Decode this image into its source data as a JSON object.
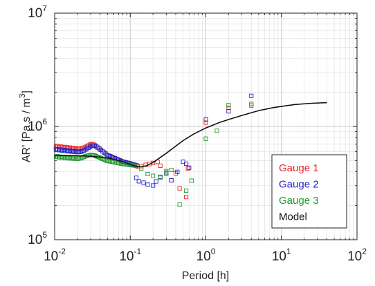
{
  "chart_data": {
    "type": "scatter",
    "xlabel": "Period [h]",
    "ylabel_main": "AR' [Pa s / m",
    "ylabel_sup": "3",
    "ylabel_end": "]",
    "x_scale": "log",
    "y_scale": "log",
    "xlim": [
      0.01,
      100
    ],
    "ylim": [
      100000,
      10000000
    ],
    "grid": true,
    "legend_position": "bottom-right",
    "x_ticks": [
      {
        "base": "10",
        "exp": "-2",
        "value": 0.01
      },
      {
        "base": "10",
        "exp": "-1",
        "value": 0.1
      },
      {
        "base": "10",
        "exp": "0",
        "value": 1
      },
      {
        "base": "10",
        "exp": "1",
        "value": 10
      },
      {
        "base": "10",
        "exp": "2",
        "value": 100
      }
    ],
    "y_ticks": [
      {
        "base": "10",
        "exp": "5",
        "value": 100000
      },
      {
        "base": "10",
        "exp": "6",
        "value": 1000000
      },
      {
        "base": "10",
        "exp": "7",
        "value": 10000000
      }
    ],
    "series": [
      {
        "name": "Gauge 1",
        "color": "#e8262a",
        "marker": "square",
        "points": [
          [
            0.0104,
            661000
          ],
          [
            0.0109,
            671000
          ],
          [
            0.0114,
            655000
          ],
          [
            0.012,
            664000
          ],
          [
            0.0126,
            651000
          ],
          [
            0.0132,
            659000
          ],
          [
            0.0138,
            646000
          ],
          [
            0.0145,
            655000
          ],
          [
            0.0152,
            642000
          ],
          [
            0.0159,
            650000
          ],
          [
            0.0167,
            638000
          ],
          [
            0.0175,
            645000
          ],
          [
            0.0183,
            635000
          ],
          [
            0.0192,
            642000
          ],
          [
            0.0201,
            632000
          ],
          [
            0.0211,
            639000
          ],
          [
            0.0221,
            634000
          ],
          [
            0.0232,
            642000
          ],
          [
            0.0243,
            648000
          ],
          [
            0.0255,
            658000
          ],
          [
            0.0267,
            667000
          ],
          [
            0.028,
            680000
          ],
          [
            0.0294,
            691000
          ],
          [
            0.0308,
            699000
          ],
          [
            0.0323,
            695000
          ],
          [
            0.0338,
            682000
          ],
          [
            0.0355,
            668000
          ],
          [
            0.0372,
            651000
          ],
          [
            0.039,
            636000
          ],
          [
            0.0408,
            621000
          ],
          [
            0.0428,
            605000
          ],
          [
            0.0449,
            590000
          ],
          [
            0.0471,
            575000
          ],
          [
            0.0493,
            561000
          ],
          [
            0.0517,
            552000
          ],
          [
            0.0543,
            545000
          ],
          [
            0.0569,
            538000
          ],
          [
            0.0596,
            531000
          ],
          [
            0.0625,
            524000
          ],
          [
            0.0656,
            517000
          ],
          [
            0.0688,
            510000
          ],
          [
            0.0721,
            503000
          ],
          [
            0.0756,
            496000
          ],
          [
            0.0792,
            489000
          ],
          [
            0.0831,
            485000
          ],
          [
            0.0871,
            481000
          ],
          [
            0.0913,
            478000
          ],
          [
            0.0957,
            474000
          ],
          [
            0.1003,
            470000
          ],
          [
            0.1052,
            465000
          ],
          [
            0.1103,
            461000
          ],
          [
            0.1156,
            457000
          ],
          [
            0.1212,
            453000
          ],
          [
            0.125,
            443000
          ],
          [
            0.14,
            446000
          ],
          [
            0.16,
            459000
          ],
          [
            0.18,
            465000
          ],
          [
            0.2,
            476000
          ],
          [
            0.23,
            487000
          ],
          [
            0.25,
            450000
          ],
          [
            0.3,
            403000
          ],
          [
            0.35,
            335000
          ],
          [
            0.4,
            385000
          ],
          [
            0.45,
            284000
          ],
          [
            0.55,
            238000
          ],
          [
            0.58,
            426000
          ],
          [
            1.0,
            1080000
          ],
          [
            2.0,
            1460000
          ],
          [
            4.0,
            1530000
          ]
        ]
      },
      {
        "name": "Gauge 2",
        "color": "#2424c8",
        "marker": "square",
        "points": [
          [
            0.0104,
            625000
          ],
          [
            0.0109,
            632000
          ],
          [
            0.0114,
            617000
          ],
          [
            0.012,
            625000
          ],
          [
            0.0126,
            612000
          ],
          [
            0.0132,
            620000
          ],
          [
            0.0138,
            607000
          ],
          [
            0.0145,
            615000
          ],
          [
            0.0152,
            603000
          ],
          [
            0.0159,
            611000
          ],
          [
            0.0167,
            599000
          ],
          [
            0.0175,
            607000
          ],
          [
            0.0183,
            596000
          ],
          [
            0.0192,
            604000
          ],
          [
            0.0201,
            593000
          ],
          [
            0.0211,
            601000
          ],
          [
            0.0221,
            596000
          ],
          [
            0.0232,
            605000
          ],
          [
            0.0243,
            613000
          ],
          [
            0.0255,
            624000
          ],
          [
            0.0267,
            635000
          ],
          [
            0.028,
            648000
          ],
          [
            0.0294,
            661000
          ],
          [
            0.0308,
            672000
          ],
          [
            0.0323,
            679000
          ],
          [
            0.0338,
            676000
          ],
          [
            0.0355,
            667000
          ],
          [
            0.0372,
            651000
          ],
          [
            0.039,
            636000
          ],
          [
            0.0408,
            621000
          ],
          [
            0.0428,
            605000
          ],
          [
            0.0449,
            590000
          ],
          [
            0.0471,
            575000
          ],
          [
            0.0493,
            561000
          ],
          [
            0.0517,
            552000
          ],
          [
            0.0543,
            545000
          ],
          [
            0.0569,
            538000
          ],
          [
            0.0596,
            531000
          ],
          [
            0.0625,
            524000
          ],
          [
            0.0656,
            517000
          ],
          [
            0.0688,
            510000
          ],
          [
            0.0721,
            503000
          ],
          [
            0.0756,
            496000
          ],
          [
            0.0792,
            489000
          ],
          [
            0.0831,
            485000
          ],
          [
            0.0871,
            481000
          ],
          [
            0.0913,
            478000
          ],
          [
            0.0957,
            474000
          ],
          [
            0.1003,
            470000
          ],
          [
            0.1052,
            465000
          ],
          [
            0.1103,
            461000
          ],
          [
            0.1156,
            457000
          ],
          [
            0.1212,
            453000
          ],
          [
            0.12,
            352000
          ],
          [
            0.13,
            328000
          ],
          [
            0.15,
            319000
          ],
          [
            0.17,
            306000
          ],
          [
            0.2,
            301000
          ],
          [
            0.22,
            327000
          ],
          [
            0.25,
            359000
          ],
          [
            0.3,
            383000
          ],
          [
            0.35,
            334000
          ],
          [
            0.42,
            397000
          ],
          [
            0.5,
            488000
          ],
          [
            0.55,
            468000
          ],
          [
            0.6,
            432000
          ],
          [
            1.0,
            1150000
          ],
          [
            2.0,
            1360000
          ],
          [
            4.0,
            1860000
          ]
        ]
      },
      {
        "name": "Gauge 3",
        "color": "#1f9a2a",
        "marker": "square",
        "points": [
          [
            0.0104,
            539000
          ],
          [
            0.0109,
            546000
          ],
          [
            0.0114,
            533000
          ],
          [
            0.012,
            541000
          ],
          [
            0.0126,
            529000
          ],
          [
            0.0132,
            537000
          ],
          [
            0.0138,
            526000
          ],
          [
            0.0145,
            534000
          ],
          [
            0.0152,
            523000
          ],
          [
            0.0159,
            531000
          ],
          [
            0.0167,
            521000
          ],
          [
            0.0175,
            529000
          ],
          [
            0.0183,
            519000
          ],
          [
            0.0192,
            527000
          ],
          [
            0.0201,
            518000
          ],
          [
            0.0211,
            526000
          ],
          [
            0.0221,
            522000
          ],
          [
            0.0232,
            530000
          ],
          [
            0.0243,
            537000
          ],
          [
            0.0255,
            544000
          ],
          [
            0.0267,
            550000
          ],
          [
            0.028,
            555000
          ],
          [
            0.0294,
            559000
          ],
          [
            0.0308,
            562000
          ],
          [
            0.0323,
            559000
          ],
          [
            0.0338,
            553000
          ],
          [
            0.0355,
            546000
          ],
          [
            0.0372,
            539000
          ],
          [
            0.039,
            532000
          ],
          [
            0.0408,
            525000
          ],
          [
            0.0428,
            518000
          ],
          [
            0.0449,
            511000
          ],
          [
            0.0471,
            504000
          ],
          [
            0.0493,
            497000
          ],
          [
            0.0517,
            494000
          ],
          [
            0.0543,
            491000
          ],
          [
            0.0569,
            488000
          ],
          [
            0.0596,
            485000
          ],
          [
            0.0625,
            482000
          ],
          [
            0.0656,
            479000
          ],
          [
            0.0688,
            476000
          ],
          [
            0.0721,
            473000
          ],
          [
            0.0756,
            470000
          ],
          [
            0.0792,
            467000
          ],
          [
            0.0831,
            465000
          ],
          [
            0.0871,
            463000
          ],
          [
            0.0913,
            461000
          ],
          [
            0.0957,
            459000
          ],
          [
            0.1003,
            457000
          ],
          [
            0.1052,
            455000
          ],
          [
            0.1103,
            453000
          ],
          [
            0.1156,
            451000
          ],
          [
            0.1212,
            449000
          ],
          [
            0.14,
            424000
          ],
          [
            0.17,
            380000
          ],
          [
            0.2,
            366000
          ],
          [
            0.25,
            352000
          ],
          [
            0.3,
            393000
          ],
          [
            0.35,
            413000
          ],
          [
            0.45,
            204000
          ],
          [
            0.55,
            271000
          ],
          [
            0.65,
            332000
          ],
          [
            1.0,
            780000
          ],
          [
            1.4,
            915000
          ],
          [
            2.0,
            1540000
          ],
          [
            4.0,
            1580000
          ]
        ]
      },
      {
        "name": "Model",
        "color": "#111111",
        "marker": "line",
        "points": [
          [
            0.01,
            550000
          ],
          [
            0.0135,
            553000
          ],
          [
            0.02,
            552000
          ],
          [
            0.03,
            545000
          ],
          [
            0.04,
            536000
          ],
          [
            0.05,
            525000
          ],
          [
            0.06,
            513000
          ],
          [
            0.08,
            488000
          ],
          [
            0.1,
            463000
          ],
          [
            0.12,
            445000
          ],
          [
            0.14,
            440000
          ],
          [
            0.16,
            447000
          ],
          [
            0.2,
            480000
          ],
          [
            0.3,
            580000
          ],
          [
            0.5,
            750000
          ],
          [
            0.7,
            860000
          ],
          [
            1.0,
            970000
          ],
          [
            1.5,
            1080000
          ],
          [
            2.0,
            1150000
          ],
          [
            3.0,
            1250000
          ],
          [
            5.0,
            1380000
          ],
          [
            8.0,
            1470000
          ],
          [
            15.0,
            1560000
          ],
          [
            25.0,
            1600000
          ],
          [
            40.0,
            1620000
          ]
        ]
      }
    ]
  }
}
